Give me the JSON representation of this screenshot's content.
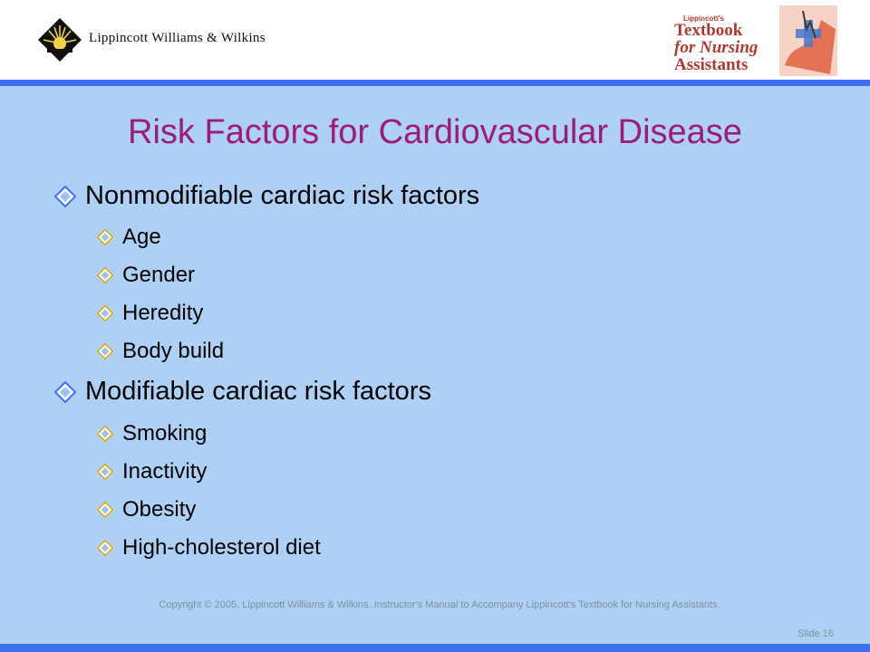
{
  "header": {
    "publisher_name": "Lippincott Williams & Wilkins",
    "book_logo_small": "Lippincott's",
    "book_logo_line1": "Textbook",
    "book_logo_line2": "for Nursing",
    "book_logo_line3": "Assistants"
  },
  "slide": {
    "title": "Risk Factors for Cardiovascular Disease",
    "sections": [
      {
        "heading": "Nonmodifiable cardiac risk factors",
        "items": [
          "Age",
          "Gender",
          "Heredity",
          "Body build"
        ]
      },
      {
        "heading": "Modifiable cardiac risk factors",
        "items": [
          "Smoking",
          "Inactivity",
          "Obesity",
          "High-cholesterol diet"
        ]
      }
    ]
  },
  "footer": {
    "copyright": "Copyright © 2005.  Lippincott Williams & Wilkins. Instructor's Manual  to Accompany Lippincott's Textbook for Nursing Assistants.",
    "slide_number": "Slide 16"
  },
  "colors": {
    "accent_blue": "#3d6ff0",
    "background": "#add0f4",
    "title": "#9b1c7a"
  },
  "icons": {
    "bullet": "diamond-bullet-icon",
    "publisher": "starburst-logo-icon"
  }
}
